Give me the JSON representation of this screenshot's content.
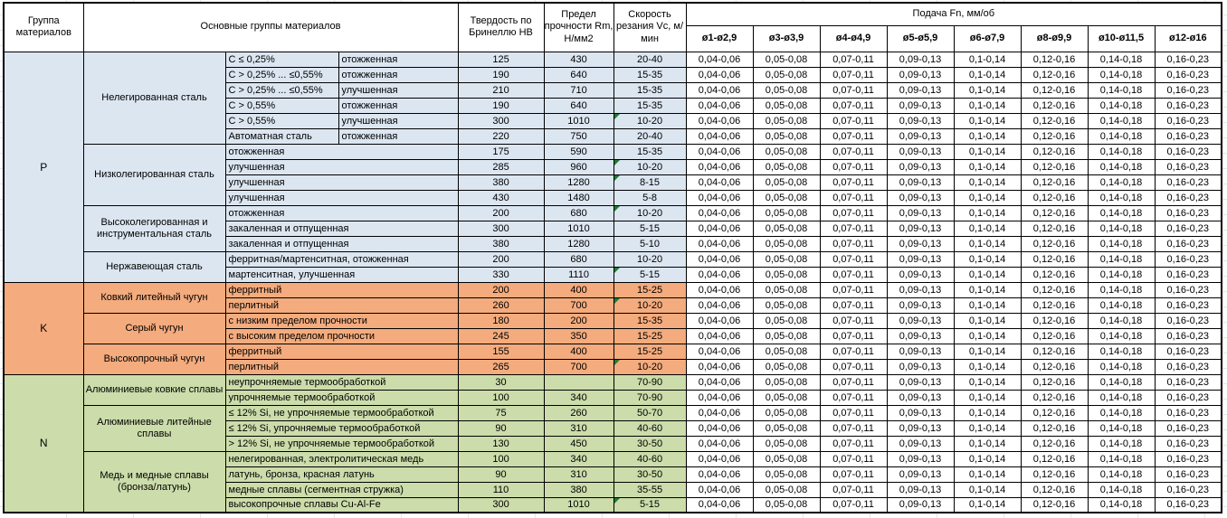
{
  "header": {
    "group_col": "Группа материалов",
    "main_col": "Основные группы материалов",
    "hardness_col": "Твердость по Бринеллю HB",
    "strength_col": "Предел прочности Rm, Н/мм2",
    "speed_col": "Скорость резания Vc, м/мин",
    "feed_title": "Подача Fn, мм/об",
    "feed_diameters": [
      "ø1-ø2,9",
      "ø3-ø3,9",
      "ø4-ø4,9",
      "ø5-ø5,9",
      "ø6-ø7,9",
      "ø8-ø9,9",
      "ø10-ø11,5",
      "ø12-ø16"
    ]
  },
  "feed_values": [
    "0,04-0,06",
    "0,05-0,08",
    "0,07-0,11",
    "0,09-0,13",
    "0,1-0,14",
    "0,12-0,16",
    "0,14-0,18",
    "0,16-0,23"
  ],
  "colors": {
    "group_P": "#dce6f1",
    "group_K": "#f4ab7d",
    "group_N": "#ccdcaa",
    "border": "#000000",
    "flag_triangle": "#1e7b34",
    "gridline": "#e2e6ee"
  },
  "groups": [
    {
      "letter": "P",
      "color": "#dce6f1",
      "subgroups": [
        {
          "name": "Нелегированная сталь",
          "rows": [
            {
              "c1": "C ≤ 0,25%",
              "c2": "отожженная",
              "hb": "125",
              "rm": "430",
              "vc": "20-40",
              "flag": false
            },
            {
              "c1": "C > 0,25% ... ≤0,55%",
              "c2": "отожженная",
              "hb": "190",
              "rm": "640",
              "vc": "15-35",
              "flag": false
            },
            {
              "c1": "C > 0,25% ... ≤0,55%",
              "c2": "улучшенная",
              "hb": "210",
              "rm": "710",
              "vc": "15-35",
              "flag": false
            },
            {
              "c1": "C > 0,55%",
              "c2": "отожженная",
              "hb": "190",
              "rm": "640",
              "vc": "15-35",
              "flag": false
            },
            {
              "c1": "C > 0,55%",
              "c2": "улучшенная",
              "hb": "300",
              "rm": "1010",
              "vc": "10-20",
              "flag": true
            },
            {
              "c1": "Автоматная сталь",
              "c2": "отожженная",
              "hb": "220",
              "rm": "750",
              "vc": "20-40",
              "flag": false
            }
          ]
        },
        {
          "name": "Низколегированная сталь",
          "rows": [
            {
              "c1": "отожженная",
              "c2": null,
              "hb": "175",
              "rm": "590",
              "vc": "15-35",
              "flag": false
            },
            {
              "c1": "улучшенная",
              "c2": null,
              "hb": "285",
              "rm": "960",
              "vc": "10-20",
              "flag": true
            },
            {
              "c1": "улучшенная",
              "c2": null,
              "hb": "380",
              "rm": "1280",
              "vc": "8-15",
              "flag": true
            },
            {
              "c1": "улучшенная",
              "c2": null,
              "hb": "430",
              "rm": "1480",
              "vc": "5-8",
              "flag": false
            }
          ]
        },
        {
          "name": "Высоколегированная и инструментальная сталь",
          "rows": [
            {
              "c1": "отожженная",
              "c2": null,
              "hb": "200",
              "rm": "680",
              "vc": "10-20",
              "flag": true
            },
            {
              "c1": "закаленная и отпущенная",
              "c2": null,
              "hb": "300",
              "rm": "1010",
              "vc": "5-15",
              "flag": false
            },
            {
              "c1": "закаленная и отпущенная",
              "c2": null,
              "hb": "380",
              "rm": "1280",
              "vc": "5-10",
              "flag": false
            }
          ]
        },
        {
          "name": "Нержавеющая сталь",
          "rows": [
            {
              "c1": "ферритная/мартенситная, отожженная",
              "c2": null,
              "hb": "200",
              "rm": "680",
              "vc": "10-20",
              "flag": false
            },
            {
              "c1": "мартенситная, улучшенная",
              "c2": null,
              "hb": "330",
              "rm": "1110",
              "vc": "5-15",
              "flag": true
            }
          ]
        }
      ]
    },
    {
      "letter": "K",
      "color": "#f4ab7d",
      "subgroups": [
        {
          "name": "Ковкий литейный чугун",
          "rows": [
            {
              "c1": "ферритный",
              "c2": null,
              "hb": "200",
              "rm": "400",
              "vc": "15-25",
              "flag": false
            },
            {
              "c1": "перлитный",
              "c2": null,
              "hb": "260",
              "rm": "700",
              "vc": "10-20",
              "flag": true
            }
          ]
        },
        {
          "name": "Серый чугун",
          "rows": [
            {
              "c1": "с низким пределом прочности",
              "c2": null,
              "hb": "180",
              "rm": "200",
              "vc": "15-35",
              "flag": false
            },
            {
              "c1": "с высоким пределом прочности",
              "c2": null,
              "hb": "245",
              "rm": "350",
              "vc": "15-25",
              "flag": false
            }
          ]
        },
        {
          "name": "Высокопрочный чугун",
          "rows": [
            {
              "c1": "ферритный",
              "c2": null,
              "hb": "155",
              "rm": "400",
              "vc": "15-25",
              "flag": false
            },
            {
              "c1": "перлитный",
              "c2": null,
              "hb": "265",
              "rm": "700",
              "vc": "10-20",
              "flag": true
            }
          ]
        }
      ]
    },
    {
      "letter": "N",
      "color": "#ccdcaa",
      "subgroups": [
        {
          "name": "Алюминиевые ковкие сплавы",
          "rows": [
            {
              "c1": "неупрочняемые термообработкой",
              "c2": null,
              "hb": "30",
              "rm": "",
              "vc": "70-90",
              "flag": false
            },
            {
              "c1": "упрочняемые термообработкой",
              "c2": null,
              "hb": "100",
              "rm": "340",
              "vc": "70-90",
              "flag": false
            }
          ]
        },
        {
          "name": "Алюминиевые литейные сплавы",
          "rows": [
            {
              "c1": "≤ 12% Si, не упрочняемые термообработкой",
              "c2": null,
              "hb": "75",
              "rm": "260",
              "vc": "50-70",
              "flag": false
            },
            {
              "c1": "≤ 12% Si, упрочняемые термообработкой",
              "c2": null,
              "hb": "90",
              "rm": "310",
              "vc": "40-60",
              "flag": false
            },
            {
              "c1": "> 12% Si, не упрочняемые термообработкой",
              "c2": null,
              "hb": "130",
              "rm": "450",
              "vc": "30-50",
              "flag": false
            }
          ]
        },
        {
          "name": "Медь и медные сплавы (бронза/латунь)",
          "rows": [
            {
              "c1": "нелегированная, электролитическая медь",
              "c2": null,
              "hb": "100",
              "rm": "340",
              "vc": "40-60",
              "flag": false
            },
            {
              "c1": "латунь, бронза, красная латунь",
              "c2": null,
              "hb": "90",
              "rm": "310",
              "vc": "30-50",
              "flag": false
            },
            {
              "c1": "медные сплавы (сегментная стружка)",
              "c2": null,
              "hb": "110",
              "rm": "380",
              "vc": "35-55",
              "flag": false
            },
            {
              "c1": "высокопрочные сплавы Cu-Al-Fe",
              "c2": null,
              "hb": "300",
              "rm": "1010",
              "vc": "5-15",
              "flag": true
            }
          ]
        }
      ]
    }
  ]
}
